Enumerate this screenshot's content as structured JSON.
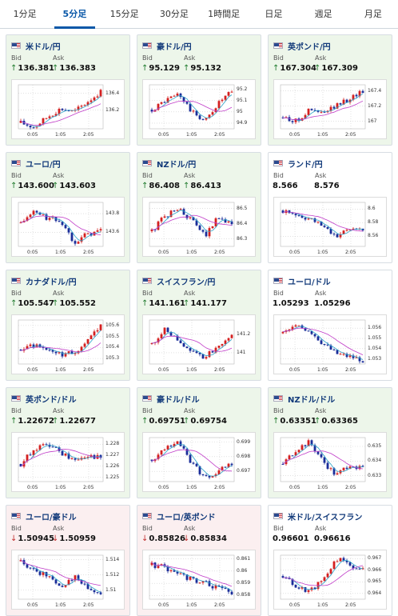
{
  "tabs": [
    {
      "label": "1分足",
      "active": false
    },
    {
      "label": "5分足",
      "active": true
    },
    {
      "label": "15分足",
      "active": false
    },
    {
      "label": "30分足",
      "active": false
    },
    {
      "label": "1時間足",
      "active": false
    },
    {
      "label": "日足",
      "active": false
    },
    {
      "label": "週足",
      "active": false
    },
    {
      "label": "月足",
      "active": false
    }
  ],
  "labels": {
    "bid": "Bid",
    "ask": "Ask"
  },
  "colors": {
    "up_bg": "#edf6ea",
    "down_bg": "#fbeff0",
    "candle_up": "#d42020",
    "candle_down": "#1a2d99",
    "ma_short": "#2aa3c8",
    "ma_long": "#c03cc8",
    "arrow_up": "#1f7a2d",
    "arrow_down": "#c23030"
  },
  "cards": [
    {
      "pair": "米ドル/円",
      "trend": "up",
      "bid": "136.381",
      "ask": "136.383",
      "chart_data": {
        "type": "candlestick",
        "x_ticks": [
          "0:05",
          "1:05",
          "2:05"
        ],
        "y_ticks": [
          "136.4",
          "136.2"
        ],
        "ylim": [
          135.98,
          136.5
        ],
        "path": [
          136.05,
          136.0,
          136.12,
          136.22,
          136.18,
          136.3,
          136.42
        ]
      }
    },
    {
      "pair": "豪ドル/円",
      "trend": "up",
      "bid": "95.129",
      "ask": "95.132",
      "chart_data": {
        "type": "candlestick",
        "x_ticks": [
          "0:05",
          "1:05",
          "2:05"
        ],
        "y_ticks": [
          "95.2",
          "95.1",
          "95",
          "94.9"
        ],
        "ylim": [
          94.85,
          95.24
        ],
        "path": [
          95.02,
          95.1,
          95.16,
          95.0,
          94.92,
          95.08,
          95.18
        ]
      }
    },
    {
      "pair": "英ポンド/円",
      "trend": "up",
      "bid": "167.304",
      "ask": "167.309",
      "chart_data": {
        "type": "candlestick",
        "x_ticks": [
          "0:05",
          "1:05",
          "2:05"
        ],
        "y_ticks": [
          "167.4",
          "167.2",
          "167"
        ],
        "ylim": [
          166.9,
          167.48
        ],
        "path": [
          167.05,
          167.0,
          167.15,
          167.1,
          167.2,
          167.3,
          167.4
        ]
      }
    },
    {
      "pair": "ユーロ/円",
      "trend": "up",
      "bid": "143.600",
      "ask": "143.603",
      "chart_data": {
        "type": "candlestick",
        "x_ticks": [
          "0:05",
          "1:05",
          "2:05"
        ],
        "y_ticks": [
          "143.8",
          "143.6"
        ],
        "ylim": [
          143.45,
          143.92
        ],
        "path": [
          143.7,
          143.82,
          143.75,
          143.72,
          143.5,
          143.58,
          143.62
        ]
      }
    },
    {
      "pair": "NZドル/円",
      "trend": "up",
      "bid": "86.408",
      "ask": "86.413",
      "chart_data": {
        "type": "candlestick",
        "x_ticks": [
          "0:05",
          "1:05",
          "2:05"
        ],
        "y_ticks": [
          "86.5",
          "86.4",
          "86.3"
        ],
        "ylim": [
          86.25,
          86.54
        ],
        "path": [
          86.35,
          86.45,
          86.5,
          86.42,
          86.32,
          86.45,
          86.4
        ]
      }
    },
    {
      "pair": "ランド/円",
      "trend": "flat",
      "bid": "8.566",
      "ask": "8.576",
      "chart_data": {
        "type": "candlestick",
        "x_ticks": [
          "0:05",
          "1:05",
          "2:05"
        ],
        "y_ticks": [
          "8.6",
          "8.58",
          "8.56"
        ],
        "ylim": [
          8.545,
          8.61
        ],
        "path": [
          8.598,
          8.592,
          8.585,
          8.575,
          8.56,
          8.57,
          8.572
        ]
      }
    },
    {
      "pair": "カナダドル/円",
      "trend": "up",
      "bid": "105.547",
      "ask": "105.552",
      "chart_data": {
        "type": "candlestick",
        "x_ticks": [
          "0:05",
          "1:05",
          "2:05"
        ],
        "y_ticks": [
          "105.6",
          "105.5",
          "105.4",
          "105.3"
        ],
        "ylim": [
          105.25,
          105.65
        ],
        "path": [
          105.38,
          105.42,
          105.36,
          105.33,
          105.35,
          105.45,
          105.6
        ]
      }
    },
    {
      "pair": "スイスフラン/円",
      "trend": "up",
      "bid": "141.161",
      "ask": "141.177",
      "chart_data": {
        "type": "candlestick",
        "x_ticks": [
          "0:05",
          "1:05",
          "2:05"
        ],
        "y_ticks": [
          "141.2",
          "141"
        ],
        "ylim": [
          140.88,
          141.35
        ],
        "path": [
          141.1,
          141.25,
          141.15,
          141.0,
          140.95,
          141.08,
          141.2
        ]
      }
    },
    {
      "pair": "ユーロ/ドル",
      "trend": "flat",
      "bid": "1.05293",
      "ask": "1.05296",
      "chart_data": {
        "type": "candlestick",
        "x_ticks": [
          "0:05",
          "1:05",
          "2:05"
        ],
        "y_ticks": [
          "1.056",
          "1.055",
          "1.054",
          "1.053"
        ],
        "ylim": [
          1.0525,
          1.0568
        ],
        "path": [
          1.0555,
          1.0562,
          1.0558,
          1.0545,
          1.0535,
          1.0532,
          1.0529
        ]
      }
    },
    {
      "pair": "英ポンド/ドル",
      "trend": "up",
      "bid": "1.22672",
      "ask": "1.22677",
      "chart_data": {
        "type": "candlestick",
        "x_ticks": [
          "0:05",
          "1:05",
          "2:05"
        ],
        "y_ticks": [
          "1.228",
          "1.227",
          "1.226",
          "1.225"
        ],
        "ylim": [
          1.2246,
          1.2286
        ],
        "path": [
          1.2262,
          1.2275,
          1.228,
          1.2272,
          1.2265,
          1.227,
          1.2267
        ]
      }
    },
    {
      "pair": "豪ドル/ドル",
      "trend": "up",
      "bid": "0.69751",
      "ask": "0.69754",
      "chart_data": {
        "type": "candlestick",
        "x_ticks": [
          "0:05",
          "1:05",
          "2:05"
        ],
        "y_ticks": [
          "0.699",
          "0.698",
          "0.697"
        ],
        "ylim": [
          0.6963,
          0.6993
        ],
        "path": [
          0.6978,
          0.6986,
          0.699,
          0.6975,
          0.6966,
          0.697,
          0.6975
        ]
      }
    },
    {
      "pair": "NZドル/ドル",
      "trend": "up",
      "bid": "0.63351",
      "ask": "0.63365",
      "chart_data": {
        "type": "candlestick",
        "x_ticks": [
          "0:05",
          "1:05",
          "2:05"
        ],
        "y_ticks": [
          "0.635",
          "0.634",
          "0.633"
        ],
        "ylim": [
          0.6326,
          0.6356
        ],
        "path": [
          0.6338,
          0.6348,
          0.6353,
          0.634,
          0.633,
          0.6338,
          0.6335
        ]
      }
    },
    {
      "pair": "ユーロ/豪ドル",
      "trend": "down",
      "bid": "1.50945",
      "ask": "1.50959",
      "chart_data": {
        "type": "candlestick",
        "x_ticks": [
          "0:05",
          "1:05",
          "2:05"
        ],
        "y_ticks": [
          "1.514",
          "1.512",
          "1.51"
        ],
        "ylim": [
          1.5088,
          1.5146
        ],
        "path": [
          1.5138,
          1.5125,
          1.512,
          1.5105,
          1.5118,
          1.5102,
          1.5094
        ]
      }
    },
    {
      "pair": "ユーロ/英ポンド",
      "trend": "down",
      "bid": "0.85826",
      "ask": "0.85834",
      "chart_data": {
        "type": "candlestick",
        "x_ticks": [
          "0:05",
          "1:05",
          "2:05"
        ],
        "y_ticks": [
          "0.861",
          "0.86",
          "0.859",
          "0.858"
        ],
        "ylim": [
          0.8577,
          0.8613
        ],
        "path": [
          0.8605,
          0.8603,
          0.8598,
          0.8593,
          0.859,
          0.8586,
          0.8582
        ]
      }
    },
    {
      "pair": "米ドル/スイスフラン",
      "trend": "flat",
      "bid": "0.96601",
      "ask": "0.96616",
      "chart_data": {
        "type": "candlestick",
        "x_ticks": [
          "0:05",
          "1:05",
          "2:05"
        ],
        "y_ticks": [
          "0.967",
          "0.966",
          "0.965",
          "0.964"
        ],
        "ylim": [
          0.9635,
          0.9673
        ],
        "path": [
          0.9655,
          0.9645,
          0.9642,
          0.9652,
          0.967,
          0.9665,
          0.966
        ]
      }
    }
  ]
}
